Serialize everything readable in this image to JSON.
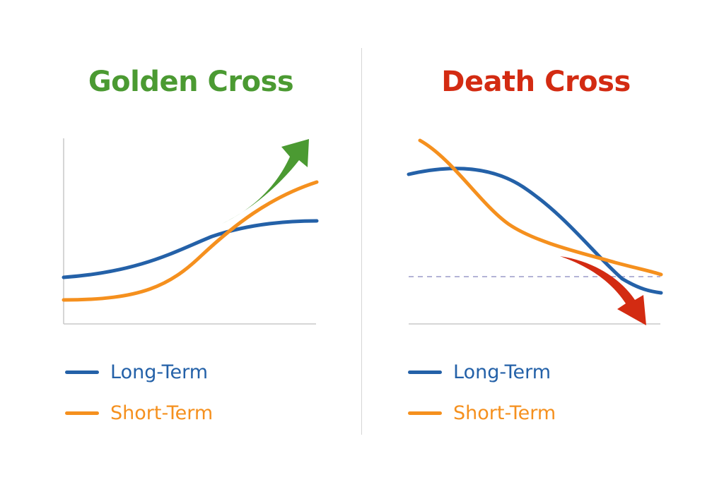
{
  "colors": {
    "long_term": "#2461a8",
    "short_term": "#f5901e",
    "golden": "#4b9a32",
    "death": "#d32b12",
    "axis": "#c8c8c8",
    "reference": "#9a9ac8"
  },
  "panels": [
    {
      "title": "Golden Cross",
      "title_color": "#4b9a32",
      "arrow_icon": "up-right-arrow",
      "arrow_color": "#4b9a32",
      "legend": [
        {
          "label": "Long-Term",
          "color": "#2461a8"
        },
        {
          "label": "Short-Term",
          "color": "#f5901e"
        }
      ]
    },
    {
      "title": "Death Cross",
      "title_color": "#d32b12",
      "arrow_icon": "down-right-arrow",
      "arrow_color": "#d32b12",
      "legend": [
        {
          "label": "Long-Term",
          "color": "#2461a8"
        },
        {
          "label": "Short-Term",
          "color": "#f5901e"
        }
      ]
    }
  ]
}
